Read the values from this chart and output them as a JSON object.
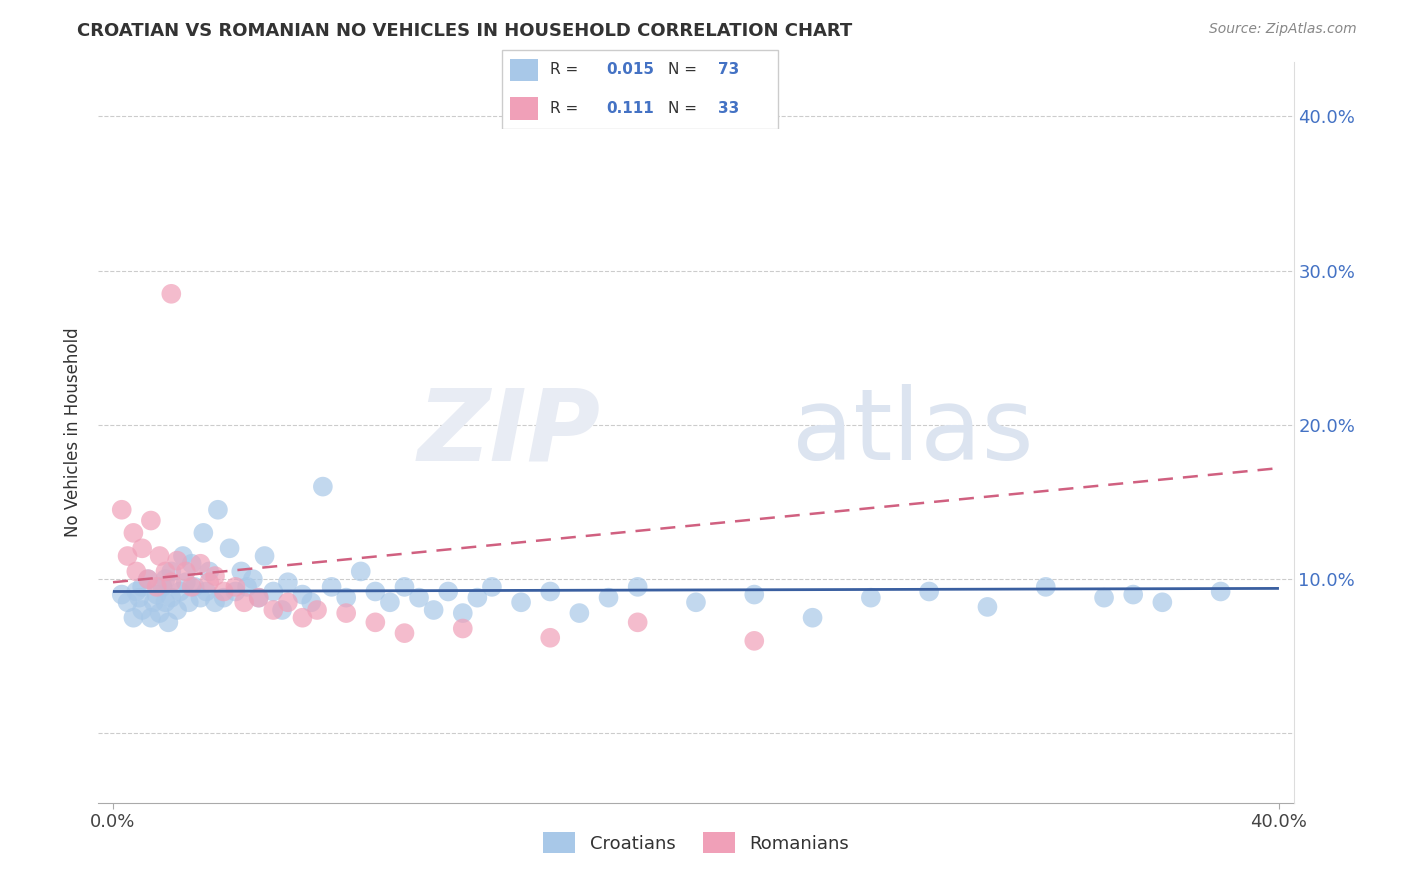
{
  "title": "CROATIAN VS ROMANIAN NO VEHICLES IN HOUSEHOLD CORRELATION CHART",
  "source": "Source: ZipAtlas.com",
  "ylabel": "No Vehicles in Household",
  "xlim": [
    -0.005,
    0.405
  ],
  "ylim": [
    -0.045,
    0.435
  ],
  "yticks": [
    0.0,
    0.1,
    0.2,
    0.3,
    0.4
  ],
  "xticks": [
    0.0,
    0.4
  ],
  "ytick_labels_right": [
    "",
    "10.0%",
    "20.0%",
    "30.0%",
    "40.0%"
  ],
  "xtick_labels": [
    "0.0%",
    "40.0%"
  ],
  "croatian_color": "#a8c8e8",
  "romanian_color": "#f0a0b8",
  "croatian_line_color": "#3a5fa0",
  "romanian_line_color": "#d06080",
  "R_croatian": 0.015,
  "N_croatian": 73,
  "R_romanian": 0.111,
  "N_romanian": 33,
  "cr_line_y0": 0.092,
  "cr_line_y1": 0.094,
  "ro_line_y0": 0.098,
  "ro_line_y1": 0.172,
  "croatian_x": [
    0.003,
    0.005,
    0.007,
    0.008,
    0.009,
    0.01,
    0.01,
    0.012,
    0.013,
    0.014,
    0.015,
    0.016,
    0.017,
    0.018,
    0.018,
    0.019,
    0.02,
    0.02,
    0.022,
    0.023,
    0.024,
    0.025,
    0.026,
    0.027,
    0.028,
    0.03,
    0.031,
    0.032,
    0.033,
    0.035,
    0.036,
    0.038,
    0.04,
    0.042,
    0.044,
    0.046,
    0.048,
    0.05,
    0.052,
    0.055,
    0.058,
    0.06,
    0.065,
    0.068,
    0.072,
    0.075,
    0.08,
    0.085,
    0.09,
    0.095,
    0.1,
    0.105,
    0.11,
    0.115,
    0.12,
    0.125,
    0.13,
    0.14,
    0.15,
    0.16,
    0.17,
    0.18,
    0.2,
    0.22,
    0.24,
    0.26,
    0.28,
    0.3,
    0.32,
    0.34,
    0.35,
    0.36,
    0.38
  ],
  "croatian_y": [
    0.09,
    0.085,
    0.075,
    0.092,
    0.088,
    0.095,
    0.08,
    0.1,
    0.075,
    0.085,
    0.09,
    0.078,
    0.095,
    0.085,
    0.1,
    0.072,
    0.088,
    0.105,
    0.08,
    0.092,
    0.115,
    0.098,
    0.085,
    0.11,
    0.095,
    0.088,
    0.13,
    0.092,
    0.105,
    0.085,
    0.145,
    0.088,
    0.12,
    0.092,
    0.105,
    0.095,
    0.1,
    0.088,
    0.115,
    0.092,
    0.08,
    0.098,
    0.09,
    0.085,
    0.16,
    0.095,
    0.088,
    0.105,
    0.092,
    0.085,
    0.095,
    0.088,
    0.08,
    0.092,
    0.078,
    0.088,
    0.095,
    0.085,
    0.092,
    0.078,
    0.088,
    0.095,
    0.085,
    0.09,
    0.075,
    0.088,
    0.092,
    0.082,
    0.095,
    0.088,
    0.09,
    0.085,
    0.092
  ],
  "romanian_x": [
    0.003,
    0.005,
    0.007,
    0.008,
    0.01,
    0.012,
    0.013,
    0.015,
    0.016,
    0.018,
    0.02,
    0.022,
    0.025,
    0.027,
    0.03,
    0.033,
    0.035,
    0.038,
    0.02,
    0.042,
    0.045,
    0.05,
    0.055,
    0.06,
    0.065,
    0.07,
    0.08,
    0.09,
    0.1,
    0.12,
    0.15,
    0.18,
    0.22
  ],
  "romanian_y": [
    0.145,
    0.115,
    0.13,
    0.105,
    0.12,
    0.1,
    0.138,
    0.095,
    0.115,
    0.105,
    0.098,
    0.112,
    0.105,
    0.095,
    0.11,
    0.098,
    0.102,
    0.092,
    0.285,
    0.095,
    0.085,
    0.088,
    0.08,
    0.085,
    0.075,
    0.08,
    0.078,
    0.072,
    0.065,
    0.068,
    0.062,
    0.072,
    0.06
  ]
}
